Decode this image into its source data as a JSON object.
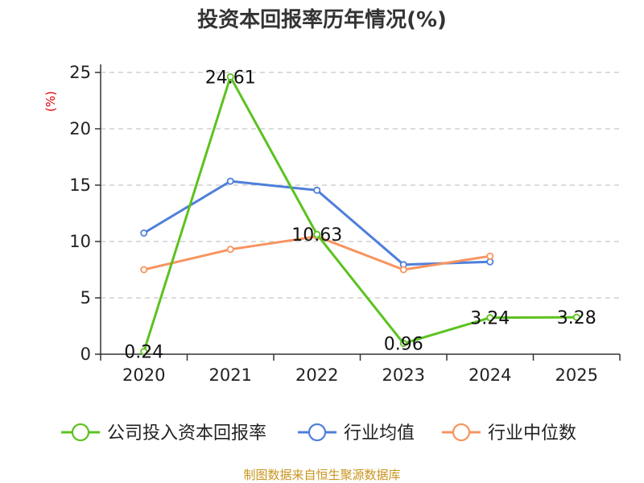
{
  "chart_data": {
    "type": "line",
    "title": "投资本回报率历年情况(%)",
    "ylabel": "(%)",
    "xlabel": "",
    "categories": [
      "2020",
      "2021",
      "2022",
      "2023",
      "2024",
      "2025"
    ],
    "ylim": [
      0,
      25
    ],
    "yticks": [
      0,
      5,
      10,
      15,
      20,
      25
    ],
    "grid": true,
    "legend_position": "bottom",
    "series": [
      {
        "name": "公司投入资本回报率",
        "color": "#5cc21f",
        "values": [
          0.24,
          24.61,
          10.63,
          0.96,
          3.24,
          3.28
        ],
        "labels": [
          "0.24",
          "24.61",
          "10.63",
          "0.96",
          "3.24",
          "3.28"
        ]
      },
      {
        "name": "行业均值",
        "color": "#4f7fdb",
        "values": [
          10.75,
          15.35,
          14.55,
          7.95,
          8.2,
          null
        ]
      },
      {
        "name": "行业中位数",
        "color": "#f79460",
        "values": [
          7.5,
          9.3,
          10.45,
          7.5,
          8.7,
          null
        ]
      }
    ]
  },
  "source_text": "制图数据来自恒生聚源数据库"
}
